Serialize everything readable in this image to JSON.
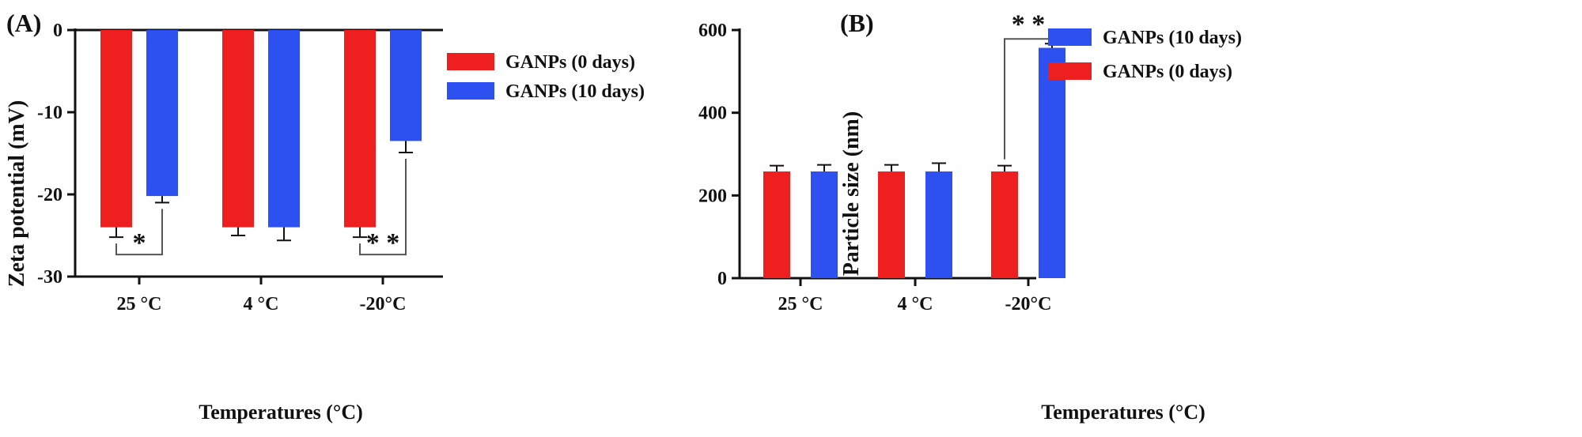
{
  "colors": {
    "red": "#ee1f1f",
    "blue": "#2d50f0",
    "axis": "#111111"
  },
  "chart_data": [
    {
      "type": "bar",
      "panel_label": "(A)",
      "categories": [
        "25 °C",
        "4 °C",
        "-20°C"
      ],
      "ylim": [
        -30,
        0
      ],
      "yticks": [
        0,
        -10,
        -20,
        -30
      ],
      "ytick_labels": [
        "0",
        "-10",
        "-20",
        "-30"
      ],
      "ylabel": "Zeta potential (mV)",
      "xlabel": "Temperatures (°C)",
      "series": [
        {
          "name": "GANPs (0 days)",
          "color": "#ee1f1f",
          "values": [
            -24,
            -24,
            -24
          ],
          "errors": [
            1.2,
            1.0,
            1.2
          ]
        },
        {
          "name": "GANPs (10 days)",
          "color": "#2d50f0",
          "values": [
            -20.2,
            -24,
            -13.5
          ],
          "errors": [
            0.8,
            1.6,
            1.4
          ]
        }
      ],
      "legend_order": [
        0,
        1
      ],
      "legend_position": "right",
      "significance": [
        {
          "category": 0,
          "label": "*"
        },
        {
          "category": 2,
          "label": "* *"
        }
      ]
    },
    {
      "type": "bar",
      "panel_label": "(B)",
      "categories": [
        "25 °C",
        "4 °C",
        "-20°C"
      ],
      "ylim": [
        0,
        600
      ],
      "yticks": [
        0,
        200,
        400,
        600
      ],
      "ytick_labels": [
        "0",
        "200",
        "400",
        "600"
      ],
      "ylabel": "Particle size (nm)",
      "xlabel": "Temperatures (°C)",
      "series": [
        {
          "name": "GANPs (0 days)",
          "color": "#ee1f1f",
          "values": [
            258,
            258,
            258
          ],
          "errors": [
            14,
            16,
            14
          ]
        },
        {
          "name": "GANPs (10 days)",
          "color": "#2d50f0",
          "values": [
            258,
            258,
            557
          ],
          "errors": [
            16,
            20,
            10
          ]
        }
      ],
      "legend_order": [
        1,
        0
      ],
      "legend_position": "top-right",
      "significance": [
        {
          "category": 2,
          "label": "* *"
        }
      ]
    }
  ]
}
